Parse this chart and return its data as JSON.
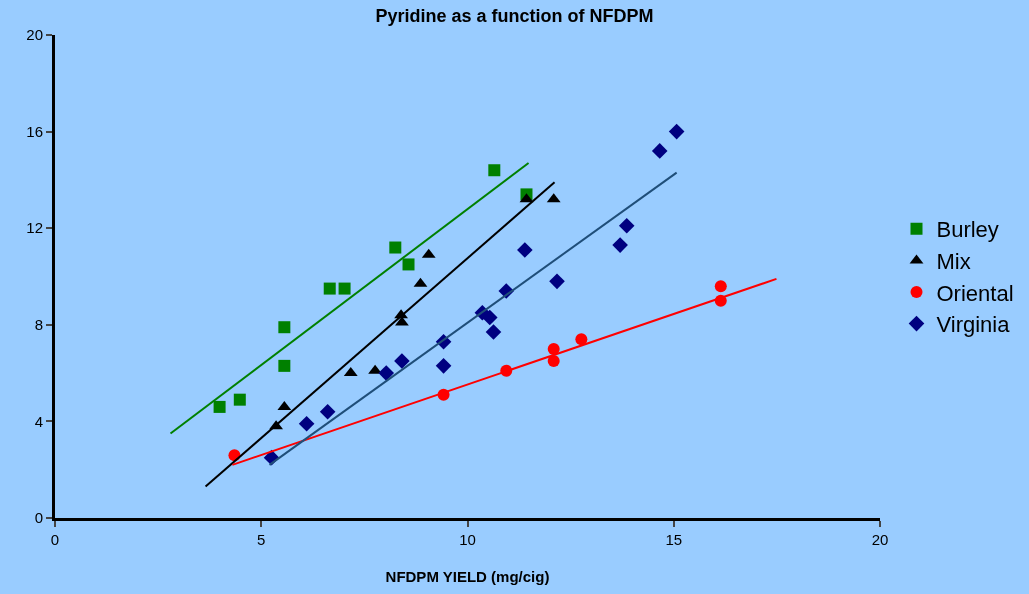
{
  "chart_data": {
    "type": "scatter",
    "title": "Pyridine as a function of NFDPM",
    "xlabel": "NFDPM YIELD (mg/cig)",
    "xlim": [
      0,
      20
    ],
    "xticks": [
      0,
      5,
      10,
      15,
      20
    ],
    "ylim": [
      0,
      20
    ],
    "yticks": [
      0,
      4,
      8,
      12,
      16,
      20
    ],
    "grid": false,
    "legend": "right",
    "series": [
      {
        "name": "Burley",
        "color": "#008000",
        "marker": "square",
        "x": [
          3.99,
          4.48,
          5.56,
          5.56,
          6.66,
          7.02,
          8.25,
          8.57,
          10.65,
          11.43
        ],
        "values": [
          4.6,
          4.9,
          7.9,
          6.3,
          9.5,
          9.5,
          11.2,
          10.5,
          14.4,
          13.4
        ]
      },
      {
        "name": "Mix",
        "color": "#000000",
        "marker": "triangle",
        "x": [
          5.36,
          5.56,
          7.17,
          7.76,
          8.39,
          8.41,
          8.86,
          9.06,
          11.43,
          12.09
        ],
        "values": [
          3.8,
          4.6,
          6.0,
          6.1,
          8.4,
          8.1,
          9.7,
          10.9,
          13.2,
          13.2
        ]
      },
      {
        "name": "Oriental",
        "color": "#ff0000",
        "marker": "circle",
        "x": [
          4.35,
          9.42,
          10.94,
          12.09,
          12.09,
          12.76,
          16.14,
          16.14
        ],
        "values": [
          2.6,
          5.1,
          6.1,
          7.0,
          6.5,
          7.4,
          9.6,
          9.0
        ]
      },
      {
        "name": "Virginia",
        "color": "#000080",
        "marker": "diamond",
        "x": [
          5.25,
          6.1,
          6.61,
          8.03,
          8.41,
          9.42,
          9.42,
          10.36,
          10.54,
          10.63,
          10.94,
          11.39,
          12.17,
          13.7,
          13.86,
          14.66,
          15.07
        ],
        "values": [
          2.5,
          3.9,
          4.4,
          6.0,
          6.5,
          6.3,
          7.3,
          8.5,
          8.3,
          7.7,
          9.4,
          11.1,
          9.8,
          11.3,
          12.1,
          15.2,
          16.0
        ]
      },
      {
        "type": "line",
        "color": "#008000",
        "x": [
          2.8,
          11.48
        ],
        "values": [
          3.5,
          14.7
        ]
      },
      {
        "type": "line",
        "color": "#000000",
        "x": [
          3.65,
          12.11
        ],
        "values": [
          1.3,
          13.9
        ]
      },
      {
        "type": "line",
        "color": "#ff0000",
        "x": [
          4.3,
          17.49
        ],
        "values": [
          2.2,
          9.9
        ]
      },
      {
        "type": "line",
        "color": "#1f4e79",
        "x": [
          5.2,
          15.07
        ],
        "values": [
          2.2,
          14.3
        ]
      }
    ]
  }
}
